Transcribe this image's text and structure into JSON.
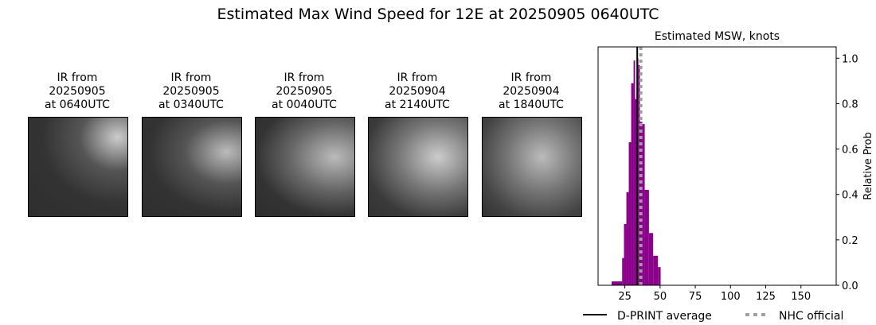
{
  "title": "Estimated Max Wind Speed for 12E at 20250905 0640UTC",
  "panels": [
    {
      "l1": "IR from",
      "l2": "20250905",
      "l3": "at 0640UTC"
    },
    {
      "l1": "IR from",
      "l2": "20250905",
      "l3": "at 0340UTC"
    },
    {
      "l1": "IR from",
      "l2": "20250905",
      "l3": "at 0040UTC"
    },
    {
      "l1": "IR from",
      "l2": "20250904",
      "l3": "at 2140UTC"
    },
    {
      "l1": "IR from",
      "l2": "20250904",
      "l3": "at 1840UTC"
    }
  ],
  "chart_data": {
    "type": "bar",
    "title": "Estimated MSW, knots",
    "ylabel": "Relative Prob",
    "xlim": [
      6,
      175
    ],
    "ylim": [
      0,
      1.05
    ],
    "xticks": [
      25,
      50,
      75,
      100,
      125,
      150
    ],
    "yticks": [
      "0.0",
      "0.2",
      "0.4",
      "0.6",
      "0.8",
      "1.0"
    ],
    "bar_color": "#8b008b",
    "bins": [
      [
        15.6,
        23.1,
        0.017
      ],
      [
        23.1,
        24.4,
        0.12
      ],
      [
        24.4,
        26.1,
        0.27
      ],
      [
        26.1,
        27.8,
        0.41
      ],
      [
        27.8,
        29.5,
        0.63
      ],
      [
        29.5,
        31.2,
        0.89
      ],
      [
        31.2,
        32.3,
        0.99
      ],
      [
        32.3,
        33.5,
        0.82
      ],
      [
        33.5,
        34.6,
        1.0
      ],
      [
        34.6,
        35.7,
        0.97
      ],
      [
        35.7,
        37.4,
        0.72
      ],
      [
        37.4,
        39.1,
        0.71
      ],
      [
        39.1,
        42.1,
        0.42
      ],
      [
        42.1,
        45.1,
        0.23
      ],
      [
        45.1,
        48.5,
        0.13
      ],
      [
        48.5,
        50.4,
        0.08
      ]
    ],
    "dprint_average": 33.8,
    "nhc_official": 36.3,
    "legend": {
      "dprint": "D-PRINT average",
      "nhc": "NHC official",
      "position": "bottom"
    }
  }
}
